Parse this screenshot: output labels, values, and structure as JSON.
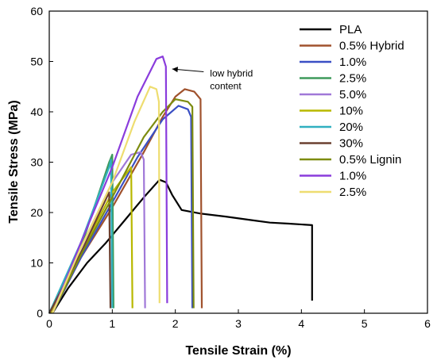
{
  "chart_data": {
    "type": "line",
    "xlabel": "Tensile Strain (%)",
    "ylabel": "Tensile Stress (MPa)",
    "xlim": [
      0,
      6
    ],
    "ylim": [
      0,
      60
    ],
    "xticks": [
      "0",
      "1",
      "2",
      "3",
      "4",
      "5",
      "6"
    ],
    "yticks": [
      "0",
      "10",
      "20",
      "30",
      "40",
      "50",
      "60"
    ],
    "grid": false,
    "legend_position": "right",
    "annotation": {
      "lines": [
        "low hybrid",
        "content"
      ],
      "arrow_to": [
        1.95,
        48.5
      ],
      "text_at": [
        2.55,
        47
      ]
    },
    "series": [
      {
        "name": "PLA",
        "color": "#000000",
        "points": [
          [
            0.05,
            0
          ],
          [
            0.3,
            5
          ],
          [
            0.6,
            10
          ],
          [
            0.9,
            14
          ],
          [
            1.2,
            18.5
          ],
          [
            1.5,
            23
          ],
          [
            1.75,
            26.5
          ],
          [
            1.85,
            26
          ],
          [
            1.95,
            23.5
          ],
          [
            2.1,
            20.5
          ],
          [
            2.4,
            19.8
          ],
          [
            2.8,
            19.2
          ],
          [
            3.2,
            18.5
          ],
          [
            3.5,
            18
          ],
          [
            3.8,
            17.8
          ],
          [
            4.17,
            17.5
          ],
          [
            4.17,
            2.5
          ]
        ]
      },
      {
        "name": "0.5% Hybrid",
        "color": "#a0522d",
        "points": [
          [
            0.05,
            0
          ],
          [
            0.5,
            11
          ],
          [
            1.0,
            21
          ],
          [
            1.5,
            32
          ],
          [
            1.8,
            39
          ],
          [
            2.0,
            43
          ],
          [
            2.15,
            44.5
          ],
          [
            2.3,
            44
          ],
          [
            2.4,
            42.5
          ],
          [
            2.42,
            1
          ]
        ]
      },
      {
        "name": "1.0%",
        "color": "#3a4fc4",
        "points": [
          [
            0.05,
            0
          ],
          [
            0.5,
            11
          ],
          [
            1.0,
            22
          ],
          [
            1.4,
            31
          ],
          [
            1.8,
            38.5
          ],
          [
            2.05,
            41.2
          ],
          [
            2.2,
            40.5
          ],
          [
            2.25,
            39
          ],
          [
            2.27,
            1
          ]
        ]
      },
      {
        "name": "2.5%",
        "color": "#3e9a5c",
        "points": [
          [
            0.0,
            0
          ],
          [
            0.5,
            13
          ],
          [
            0.95,
            30
          ],
          [
            1.0,
            31.5
          ],
          [
            1.02,
            1
          ]
        ]
      },
      {
        "name": "5.0%",
        "color": "#a078d8",
        "points": [
          [
            0.03,
            0
          ],
          [
            0.5,
            13
          ],
          [
            1.0,
            26
          ],
          [
            1.3,
            31.5
          ],
          [
            1.45,
            32
          ],
          [
            1.5,
            30.5
          ],
          [
            1.52,
            1
          ]
        ]
      },
      {
        "name": "10%",
        "color": "#b8b800",
        "points": [
          [
            0.03,
            0
          ],
          [
            0.5,
            12
          ],
          [
            1.0,
            24
          ],
          [
            1.3,
            29
          ],
          [
            1.32,
            1
          ]
        ]
      },
      {
        "name": "20%",
        "color": "#30b0c0",
        "points": [
          [
            0.0,
            0
          ],
          [
            0.5,
            14
          ],
          [
            0.95,
            29
          ],
          [
            0.98,
            30.5
          ],
          [
            1.0,
            1
          ]
        ]
      },
      {
        "name": "30%",
        "color": "#6b4030",
        "points": [
          [
            0.0,
            0
          ],
          [
            0.5,
            12
          ],
          [
            0.93,
            23.5
          ],
          [
            0.95,
            24
          ],
          [
            0.97,
            1
          ]
        ]
      },
      {
        "name": "0.5% Lignin",
        "color": "#7d8c10",
        "points": [
          [
            0.05,
            0
          ],
          [
            0.5,
            11.5
          ],
          [
            1.0,
            23
          ],
          [
            1.5,
            35
          ],
          [
            1.8,
            40
          ],
          [
            2.0,
            42.5
          ],
          [
            2.2,
            42
          ],
          [
            2.27,
            41
          ],
          [
            2.29,
            1
          ]
        ]
      },
      {
        "name": "1.0%",
        "color": "#8a3cdc",
        "points": [
          [
            0.05,
            0
          ],
          [
            0.5,
            14
          ],
          [
            1.0,
            29
          ],
          [
            1.4,
            43
          ],
          [
            1.7,
            50.5
          ],
          [
            1.8,
            51
          ],
          [
            1.85,
            49
          ],
          [
            1.87,
            2
          ]
        ]
      },
      {
        "name": "2.5%",
        "color": "#eedd70",
        "points": [
          [
            0.05,
            0
          ],
          [
            0.5,
            13
          ],
          [
            1.0,
            26
          ],
          [
            1.35,
            38
          ],
          [
            1.6,
            45
          ],
          [
            1.7,
            44.5
          ],
          [
            1.74,
            42
          ],
          [
            1.75,
            2
          ]
        ]
      }
    ]
  }
}
